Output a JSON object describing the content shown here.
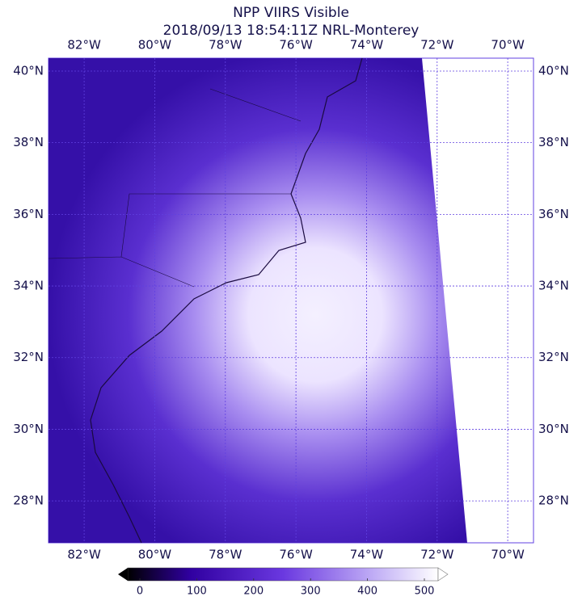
{
  "title": [
    "NPP VIIRS Visible",
    "2018/09/13 18:54:11Z NRL-Monterey"
  ],
  "map": {
    "xlim": [
      -83.01,
      -69.27
    ],
    "ylim": [
      26.83,
      40.36
    ],
    "xticks": [
      {
        "value": -82,
        "label": "82°W"
      },
      {
        "value": -80,
        "label": "80°W"
      },
      {
        "value": -78,
        "label": "78°W"
      },
      {
        "value": -76,
        "label": "76°W"
      },
      {
        "value": -74,
        "label": "74°W"
      },
      {
        "value": -72,
        "label": "72°W"
      },
      {
        "value": -70,
        "label": "70°W"
      }
    ],
    "yticks": [
      {
        "value": 40,
        "label": "40°N"
      },
      {
        "value": 38,
        "label": "38°N"
      },
      {
        "value": 36,
        "label": "36°N"
      },
      {
        "value": 34,
        "label": "34°N"
      },
      {
        "value": 32,
        "label": "32°N"
      },
      {
        "value": 30,
        "label": "30°N"
      },
      {
        "value": 28,
        "label": "28°N"
      }
    ],
    "grid": true
  },
  "colorbar": {
    "lim": [
      0,
      500
    ],
    "ticks": [
      0,
      100,
      200,
      300,
      400,
      500
    ]
  }
}
